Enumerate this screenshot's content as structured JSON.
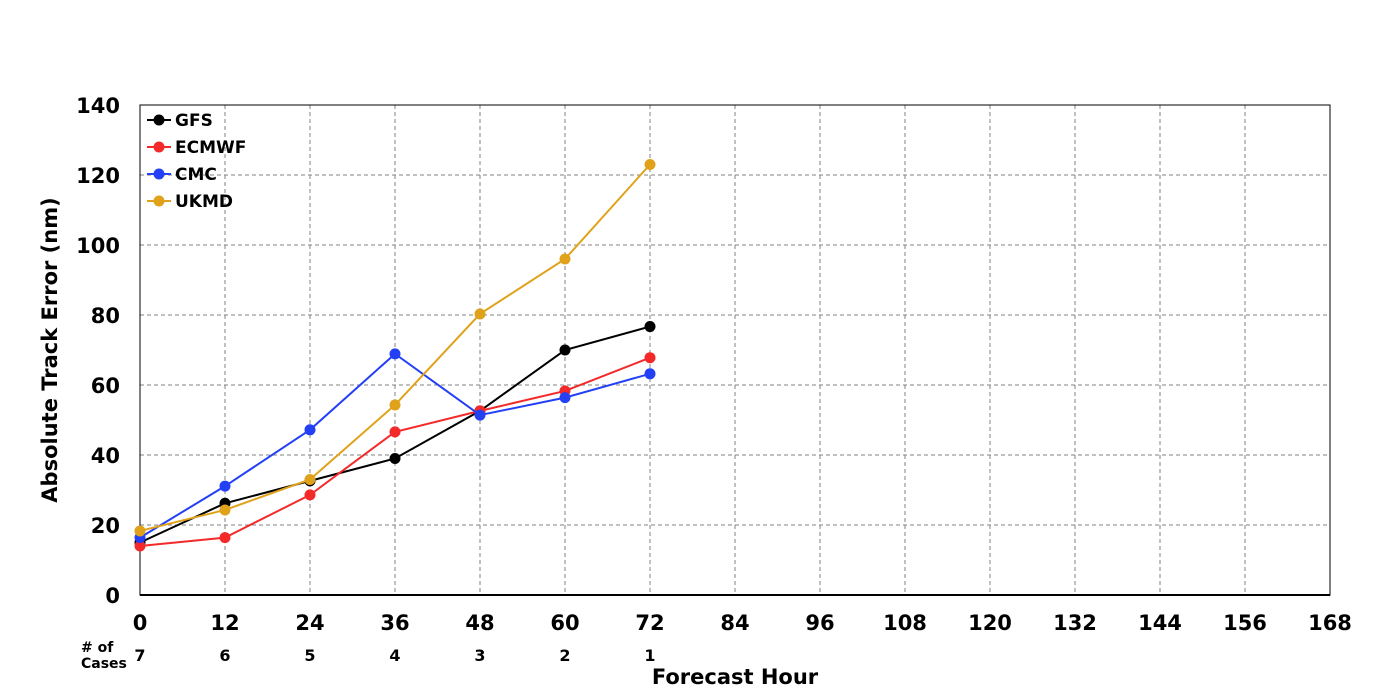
{
  "chart_data": {
    "type": "line",
    "xlabel": "Forecast Hour",
    "ylabel": "Absolute Track Error (nm)",
    "xlim": [
      0,
      168
    ],
    "ylim": [
      0,
      140
    ],
    "x_ticks": [
      0,
      12,
      24,
      36,
      48,
      60,
      72,
      84,
      96,
      108,
      120,
      132,
      144,
      156,
      168
    ],
    "y_ticks": [
      0,
      20,
      40,
      60,
      80,
      100,
      120,
      140
    ],
    "grid": true,
    "legend_position": "top-left",
    "x": [
      0,
      12,
      24,
      36,
      48,
      60,
      72
    ],
    "series": [
      {
        "name": "GFS",
        "color": "#000000",
        "values": [
          15.0,
          26.2,
          32.6,
          39.0,
          52.6,
          70.0,
          76.7
        ]
      },
      {
        "name": "ECMWF",
        "color": "#f42a2a",
        "values": [
          14.0,
          16.4,
          28.6,
          46.6,
          52.6,
          58.3,
          67.8
        ]
      },
      {
        "name": "CMC",
        "color": "#2340f5",
        "values": [
          16.4,
          31.1,
          47.2,
          68.9,
          51.4,
          56.4,
          63.2
        ]
      },
      {
        "name": "UKMD",
        "color": "#e0a21a",
        "values": [
          18.3,
          24.3,
          33.0,
          54.3,
          80.3,
          96.0,
          123.0
        ]
      }
    ],
    "cases": {
      "label_line1": "# of",
      "label_line2": "Cases",
      "x": [
        0,
        12,
        24,
        36,
        48,
        60,
        72
      ],
      "values": [
        "7",
        "6",
        "5",
        "4",
        "3",
        "2",
        "1"
      ]
    }
  }
}
